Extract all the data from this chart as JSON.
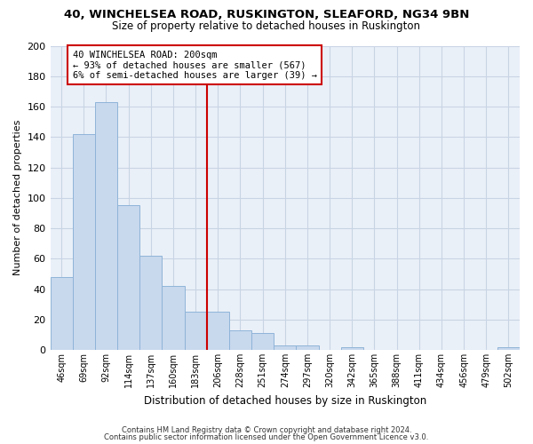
{
  "title": "40, WINCHELSEA ROAD, RUSKINGTON, SLEAFORD, NG34 9BN",
  "subtitle": "Size of property relative to detached houses in Ruskington",
  "xlabel": "Distribution of detached houses by size in Ruskington",
  "ylabel": "Number of detached properties",
  "bar_labels": [
    "46sqm",
    "69sqm",
    "92sqm",
    "114sqm",
    "137sqm",
    "160sqm",
    "183sqm",
    "206sqm",
    "228sqm",
    "251sqm",
    "274sqm",
    "297sqm",
    "320sqm",
    "342sqm",
    "365sqm",
    "388sqm",
    "411sqm",
    "434sqm",
    "456sqm",
    "479sqm",
    "502sqm"
  ],
  "bar_values": [
    48,
    142,
    163,
    95,
    62,
    42,
    25,
    25,
    13,
    11,
    3,
    3,
    0,
    2,
    0,
    0,
    0,
    0,
    0,
    0,
    2
  ],
  "bar_color": "#c8d8ed",
  "bar_edge_color": "#8fb4d8",
  "vline_x": 7.0,
  "vline_color": "#cc0000",
  "annotation_line1": "40 WINCHELSEA ROAD: 200sqm",
  "annotation_line2": "← 93% of detached houses are smaller (567)",
  "annotation_line3": "6% of semi-detached houses are larger (39) →",
  "ylim": [
    0,
    200
  ],
  "yticks": [
    0,
    20,
    40,
    60,
    80,
    100,
    120,
    140,
    160,
    180,
    200
  ],
  "footnote1": "Contains HM Land Registry data © Crown copyright and database right 2024.",
  "footnote2": "Contains public sector information licensed under the Open Government Licence v3.0.",
  "background_color": "#ffffff",
  "plot_bg_color": "#eaf0f8",
  "grid_color": "#c8d4e4"
}
